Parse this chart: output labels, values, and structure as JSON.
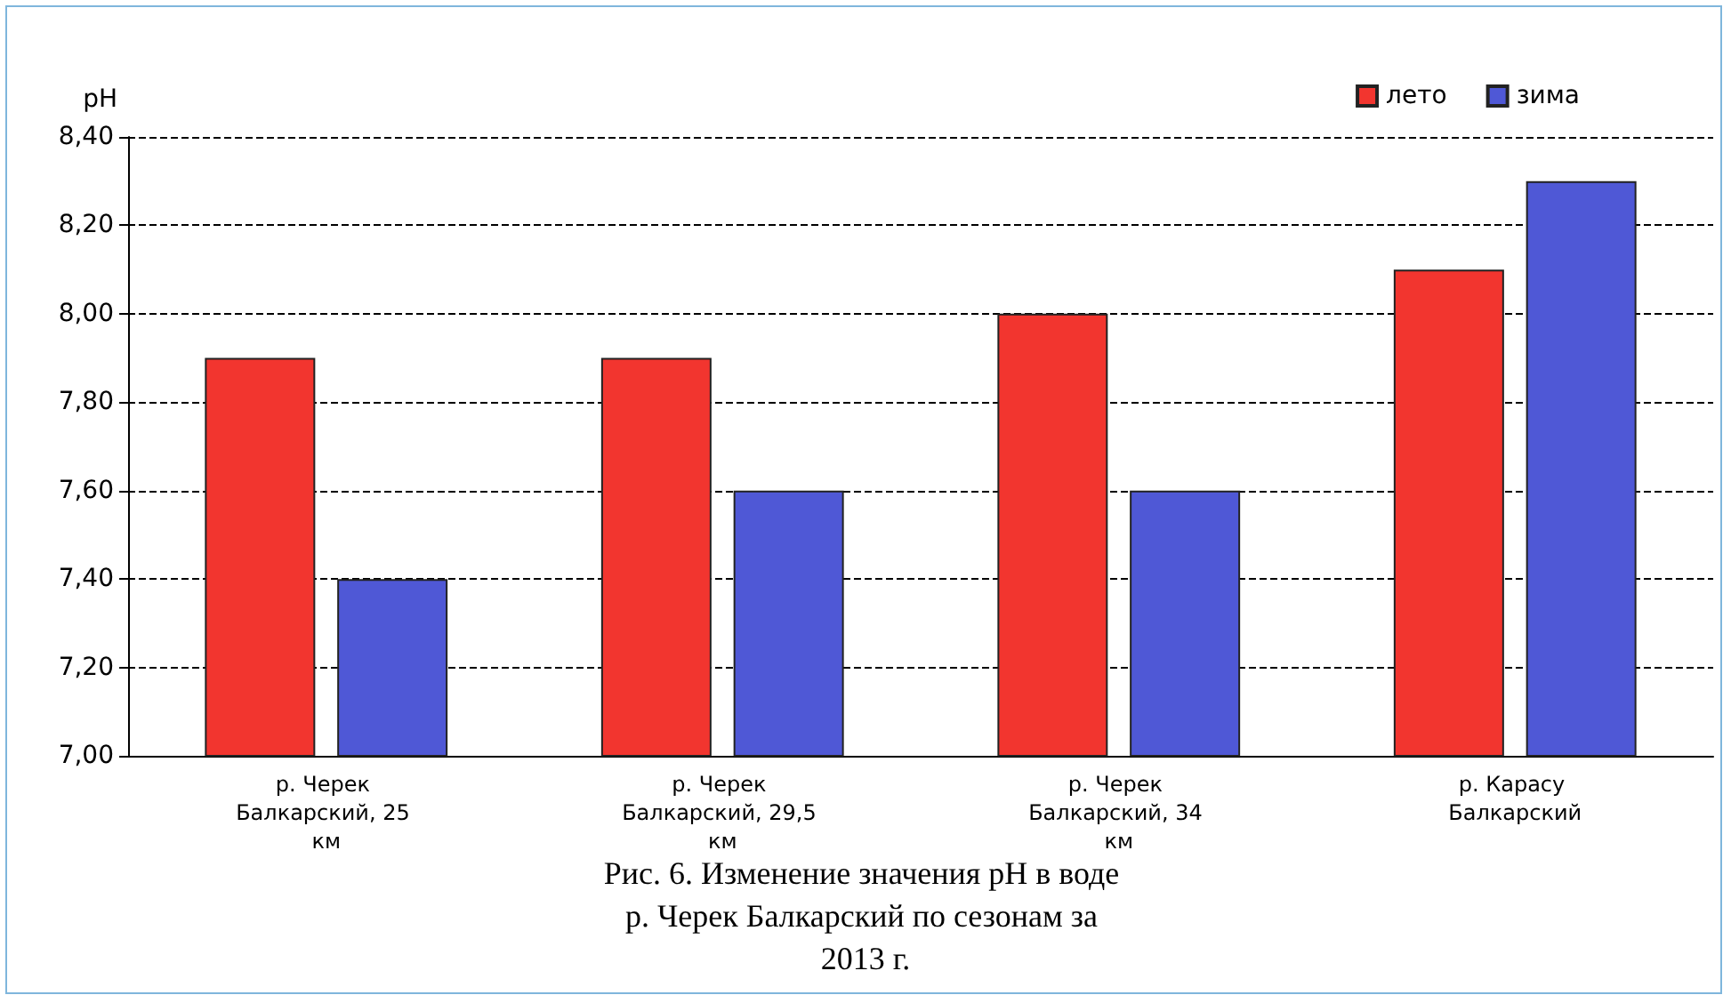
{
  "chart_data": {
    "type": "bar",
    "title": "Рис. 6. Изменение значения pH в воде р. Черек Балкарский по сезонам за 2013 г.",
    "ylabel": "pH",
    "categories": [
      "р. Черек Балкарский, 25 км",
      "р. Черек Балкарский, 29,5 км",
      "р. Черек Балкарский, 34 км",
      "р. Карасу Балкарский"
    ],
    "series": [
      {
        "name": "лето",
        "color": "#f2352f",
        "values": [
          7.9,
          7.9,
          8.0,
          8.1
        ]
      },
      {
        "name": "зима",
        "color": "#4f58d6",
        "values": [
          7.4,
          7.6,
          7.6,
          8.3
        ]
      }
    ],
    "ylim": [
      7.0,
      8.4
    ],
    "yticks": [
      {
        "value": 7.0,
        "label": "7,00"
      },
      {
        "value": 7.2,
        "label": "7,20"
      },
      {
        "value": 7.4,
        "label": "7,40"
      },
      {
        "value": 7.6,
        "label": "7,60"
      },
      {
        "value": 7.8,
        "label": "7,80"
      },
      {
        "value": 8.0,
        "label": "8,00"
      },
      {
        "value": 8.2,
        "label": "8,20"
      },
      {
        "value": 8.4,
        "label": "8,40"
      }
    ],
    "grid": "y",
    "legend": "top right"
  }
}
